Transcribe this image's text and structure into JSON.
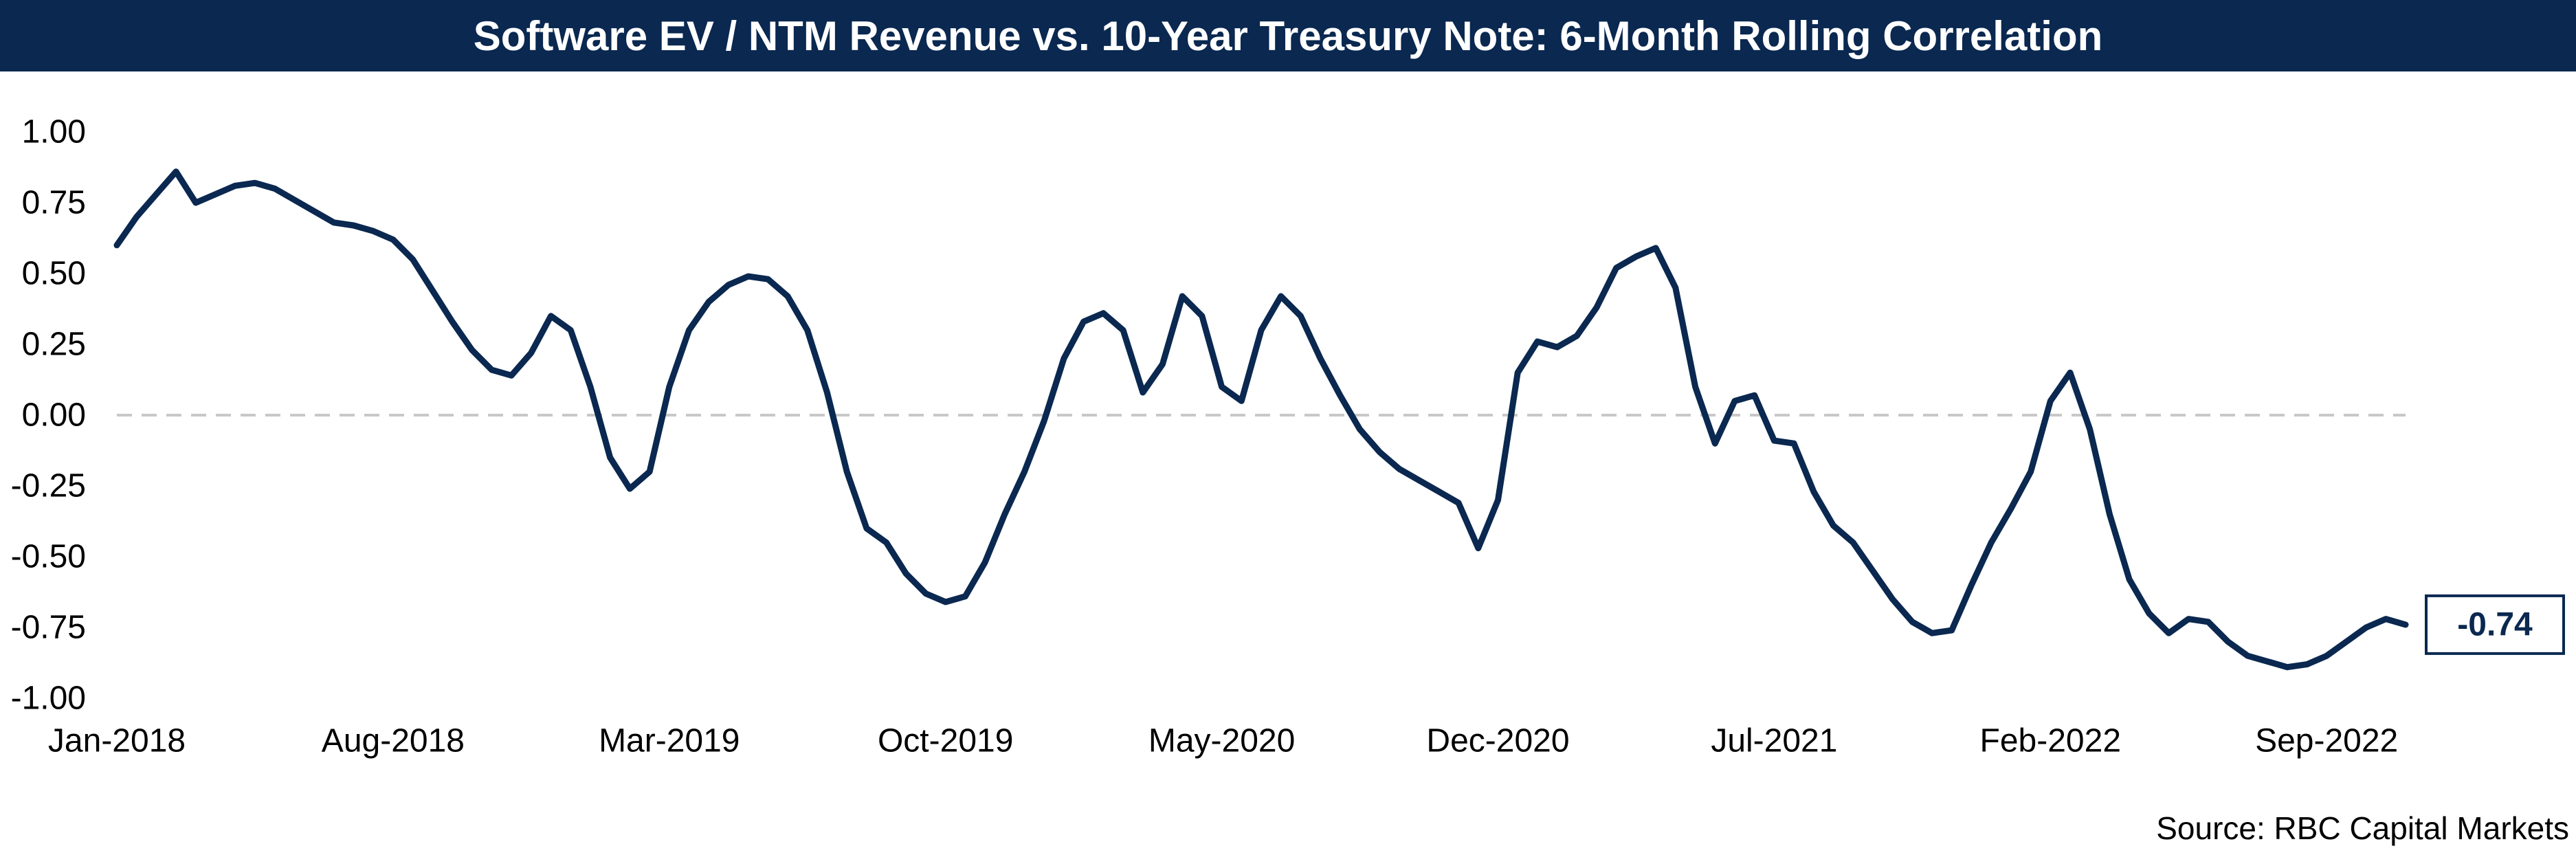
{
  "chart_data": {
    "type": "line",
    "title": "Software EV / NTM Revenue vs. 10-Year Treasury Note: 6-Month Rolling Correlation",
    "source": "Source: RBC Capital Markets",
    "x_tick_labels": [
      "Jan-2018",
      "Aug-2018",
      "Mar-2019",
      "Oct-2019",
      "May-2020",
      "Dec-2020",
      "Jul-2021",
      "Feb-2022",
      "Sep-2022"
    ],
    "y_tick_labels": [
      "1.00",
      "0.75",
      "0.50",
      "0.25",
      "0.00",
      "-0.25",
      "-0.50",
      "-0.75",
      "-1.00"
    ],
    "ylim": [
      -1.0,
      1.0
    ],
    "xlim": [
      "2018-01",
      "2022-11"
    ],
    "zero_line": "dashed",
    "line_color": "#0a2850",
    "end_label": "-0.74",
    "series": [
      {
        "values": [
          [
            "2018-01",
            0.6
          ],
          [
            "2018-01",
            0.7
          ],
          [
            "2018-02",
            0.78
          ],
          [
            "2018-02",
            0.86
          ],
          [
            "2018-03",
            0.75
          ],
          [
            "2018-03",
            0.78
          ],
          [
            "2018-04",
            0.81
          ],
          [
            "2018-04",
            0.82
          ],
          [
            "2018-05",
            0.8
          ],
          [
            "2018-05",
            0.76
          ],
          [
            "2018-06",
            0.72
          ],
          [
            "2018-06",
            0.68
          ],
          [
            "2018-07",
            0.67
          ],
          [
            "2018-07",
            0.65
          ],
          [
            "2018-08",
            0.62
          ],
          [
            "2018-08",
            0.55
          ],
          [
            "2018-09",
            0.44
          ],
          [
            "2018-09",
            0.33
          ],
          [
            "2018-10",
            0.23
          ],
          [
            "2018-10",
            0.16
          ],
          [
            "2018-11",
            0.14
          ],
          [
            "2018-11",
            0.22
          ],
          [
            "2018-12",
            0.35
          ],
          [
            "2018-12",
            0.3
          ],
          [
            "2019-01",
            0.1
          ],
          [
            "2019-01",
            -0.15
          ],
          [
            "2019-02",
            -0.26
          ],
          [
            "2019-02",
            -0.2
          ],
          [
            "2019-03",
            0.1
          ],
          [
            "2019-03",
            0.3
          ],
          [
            "2019-04",
            0.4
          ],
          [
            "2019-04",
            0.46
          ],
          [
            "2019-05",
            0.49
          ],
          [
            "2019-05",
            0.48
          ],
          [
            "2019-06",
            0.42
          ],
          [
            "2019-06",
            0.3
          ],
          [
            "2019-07",
            0.08
          ],
          [
            "2019-07",
            -0.2
          ],
          [
            "2019-08",
            -0.4
          ],
          [
            "2019-08",
            -0.45
          ],
          [
            "2019-09",
            -0.56
          ],
          [
            "2019-09",
            -0.63
          ],
          [
            "2019-10",
            -0.66
          ],
          [
            "2019-10",
            -0.64
          ],
          [
            "2019-11",
            -0.52
          ],
          [
            "2019-11",
            -0.35
          ],
          [
            "2019-12",
            -0.2
          ],
          [
            "2019-12",
            -0.02
          ],
          [
            "2020-01",
            0.2
          ],
          [
            "2020-01",
            0.33
          ],
          [
            "2020-02",
            0.36
          ],
          [
            "2020-02",
            0.3
          ],
          [
            "2020-03",
            0.08
          ],
          [
            "2020-03",
            0.18
          ],
          [
            "2020-04",
            0.42
          ],
          [
            "2020-04",
            0.35
          ],
          [
            "2020-05",
            0.1
          ],
          [
            "2020-05",
            0.05
          ],
          [
            "2020-06",
            0.3
          ],
          [
            "2020-06",
            0.42
          ],
          [
            "2020-07",
            0.35
          ],
          [
            "2020-07",
            0.2
          ],
          [
            "2020-08",
            0.07
          ],
          [
            "2020-08",
            -0.05
          ],
          [
            "2020-09",
            -0.13
          ],
          [
            "2020-09",
            -0.19
          ],
          [
            "2020-10",
            -0.23
          ],
          [
            "2020-10",
            -0.27
          ],
          [
            "2020-11",
            -0.31
          ],
          [
            "2020-11",
            -0.47
          ],
          [
            "2020-12",
            -0.3
          ],
          [
            "2020-12",
            0.15
          ],
          [
            "2021-01",
            0.26
          ],
          [
            "2021-01",
            0.24
          ],
          [
            "2021-02",
            0.28
          ],
          [
            "2021-02",
            0.38
          ],
          [
            "2021-03",
            0.52
          ],
          [
            "2021-03",
            0.56
          ],
          [
            "2021-04",
            0.59
          ],
          [
            "2021-04",
            0.45
          ],
          [
            "2021-05",
            0.1
          ],
          [
            "2021-05",
            -0.1
          ],
          [
            "2021-06",
            0.05
          ],
          [
            "2021-06",
            0.07
          ],
          [
            "2021-07",
            -0.09
          ],
          [
            "2021-07",
            -0.1
          ],
          [
            "2021-08",
            -0.27
          ],
          [
            "2021-08",
            -0.39
          ],
          [
            "2021-09",
            -0.45
          ],
          [
            "2021-09",
            -0.55
          ],
          [
            "2021-10",
            -0.65
          ],
          [
            "2021-10",
            -0.73
          ],
          [
            "2021-11",
            -0.77
          ],
          [
            "2021-11",
            -0.76
          ],
          [
            "2021-12",
            -0.6
          ],
          [
            "2021-12",
            -0.45
          ],
          [
            "2022-01",
            -0.33
          ],
          [
            "2022-01",
            -0.2
          ],
          [
            "2022-02",
            0.05
          ],
          [
            "2022-02",
            0.15
          ],
          [
            "2022-03",
            -0.05
          ],
          [
            "2022-03",
            -0.35
          ],
          [
            "2022-04",
            -0.58
          ],
          [
            "2022-04",
            -0.7
          ],
          [
            "2022-05",
            -0.77
          ],
          [
            "2022-05",
            -0.72
          ],
          [
            "2022-06",
            -0.73
          ],
          [
            "2022-06",
            -0.8
          ],
          [
            "2022-07",
            -0.85
          ],
          [
            "2022-07",
            -0.87
          ],
          [
            "2022-08",
            -0.89
          ],
          [
            "2022-08",
            -0.88
          ],
          [
            "2022-09",
            -0.85
          ],
          [
            "2022-09",
            -0.8
          ],
          [
            "2022-10",
            -0.75
          ],
          [
            "2022-10",
            -0.72
          ],
          [
            "2022-11",
            -0.74
          ]
        ]
      }
    ]
  }
}
